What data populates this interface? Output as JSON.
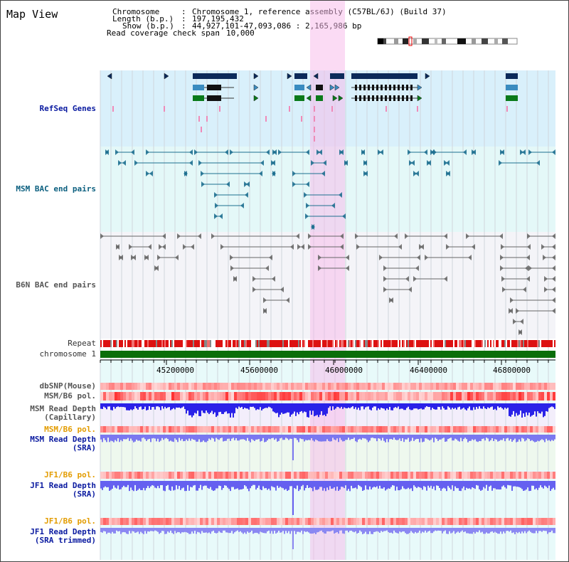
{
  "view": {
    "title": "Map View"
  },
  "info": {
    "chromosome_label": "Chromosome",
    "chromosome_value": "Chromosome 1, reference assembly (C57BL/6J) (Build 37)",
    "length_label": "Length (b.p.)",
    "length_value": "197,195,432",
    "show_label": "Show (b.p.)",
    "show_value": "44,927,101-47,093,086 : 2,165,986 bp",
    "coverage_label": "Read coverage check span",
    "coverage_value": "10,000"
  },
  "tracks": {
    "refseq": "RefSeq Genes",
    "msm_bac": "MSM BAC end pairs",
    "b6n_bac": "B6N BAC end pairs",
    "repeat": "Repeat",
    "chromosome": "chromosome 1",
    "dbsnp": "dbSNP(Mouse)",
    "msm_b6_pol_1": "MSM/B6 pol.",
    "msm_depth_cap_1": "MSM Read Depth",
    "msm_depth_cap_2": "(Capillary)",
    "msm_b6_pol_2": "MSM/B6 pol.",
    "msm_depth_sra_1": "MSM Read Depth",
    "msm_depth_sra_2": "(SRA)",
    "jf1_pol_1": "JF1/B6 pol.",
    "jf1_depth_sra_1": "JF1 Read Depth",
    "jf1_depth_sra_2": "(SRA)",
    "jf1_pol_2": "JF1/B6 pol.",
    "jf1_depth_trim_1": "JF1 Read Depth",
    "jf1_depth_trim_2": "(SRA trimmed)"
  },
  "ruler": {
    "ticks": [
      "45200000",
      "45600000",
      "46000000",
      "46400000",
      "46800000"
    ]
  },
  "colors": {
    "refseq_band": "#d9f0fb",
    "msm_band": "#e4f8f8",
    "b6n_band": "#f3f3f6",
    "highlight": "#f8d6f0",
    "chromosome_bar": "#0a6e0a",
    "depth_blue": "#2a22e8",
    "depth_light": "#7b78f0"
  }
}
